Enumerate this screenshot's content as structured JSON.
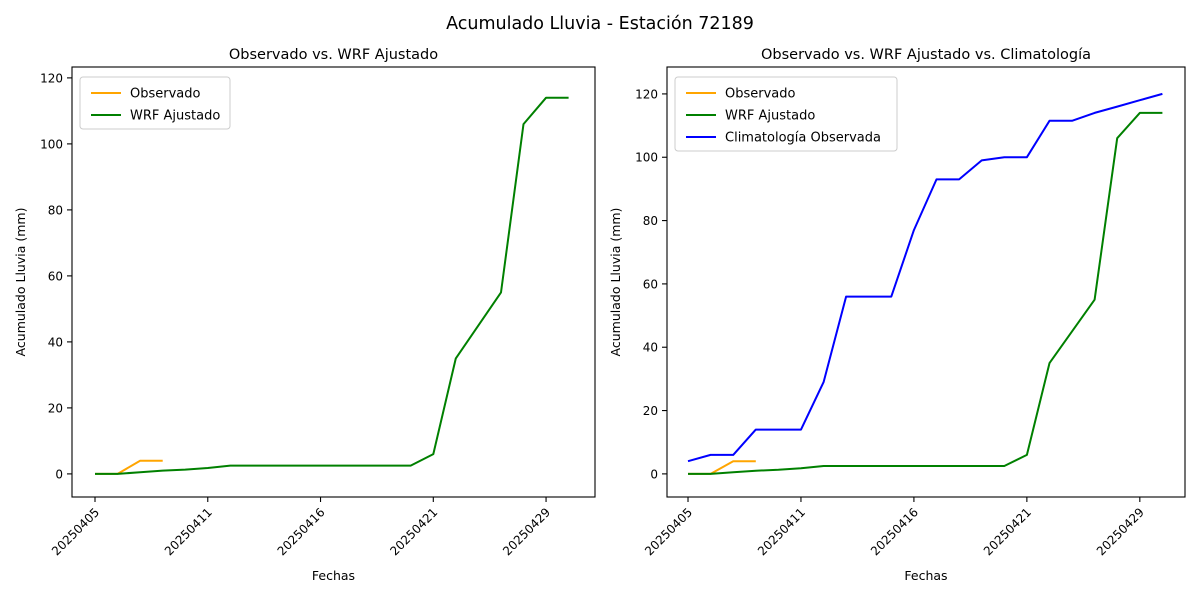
{
  "figure": {
    "suptitle": "Acumulado Lluvia - Estación 72189",
    "background": "#ffffff"
  },
  "colors": {
    "observado": "#FFA500",
    "wrf_ajustado": "#008000",
    "climatologia": "#0000FF",
    "axis": "#000000",
    "legend_border": "#cccccc",
    "legend_bg": "#ffffff"
  },
  "chart_data": [
    {
      "type": "line",
      "title": "Observado vs. WRF Ajustado",
      "xlabel": "Fechas",
      "ylabel": "Acumulado Lluvia (mm)",
      "x_tick_labels": [
        "20250405",
        "20250411",
        "20250416",
        "20250421",
        "20250429"
      ],
      "x_tick_indices": [
        0,
        5,
        10,
        15,
        20
      ],
      "y_ticks": [
        0,
        20,
        40,
        60,
        80,
        100,
        120
      ],
      "xlim": [
        -1.02,
        22.17
      ],
      "ylim": [
        -7.0,
        123.3
      ],
      "grid": false,
      "legend_position": "upper left",
      "series": [
        {
          "name": "Observado",
          "color": "#FFA500",
          "x": [
            0,
            1,
            2,
            3
          ],
          "values": [
            0,
            0,
            4,
            4
          ]
        },
        {
          "name": "WRF Ajustado",
          "color": "#008000",
          "x": [
            0,
            1,
            2,
            3,
            4,
            5,
            6,
            7,
            8,
            9,
            10,
            11,
            12,
            13,
            14,
            15,
            16,
            17,
            18,
            19,
            20,
            21
          ],
          "values": [
            0,
            0,
            0.5,
            1,
            1.3,
            1.8,
            2.5,
            2.5,
            2.5,
            2.5,
            2.5,
            2.5,
            2.5,
            2.5,
            2.5,
            6,
            35,
            45,
            55,
            106,
            114,
            114
          ]
        }
      ]
    },
    {
      "type": "line",
      "title": "Observado vs. WRF Ajustado vs. Climatología",
      "xlabel": "Fechas",
      "ylabel": "Acumulado Lluvia (mm)",
      "x_tick_labels": [
        "20250405",
        "20250411",
        "20250416",
        "20250421",
        "20250429"
      ],
      "x_tick_indices": [
        0,
        5,
        10,
        15,
        20
      ],
      "y_ticks": [
        0,
        20,
        40,
        60,
        80,
        100,
        120
      ],
      "xlim": [
        -0.93,
        22.0
      ],
      "ylim": [
        -7.3,
        128.5
      ],
      "grid": false,
      "legend_position": "upper left",
      "series": [
        {
          "name": "Observado",
          "color": "#FFA500",
          "x": [
            0,
            1,
            2,
            3
          ],
          "values": [
            0,
            0,
            4,
            4
          ]
        },
        {
          "name": "WRF Ajustado",
          "color": "#008000",
          "x": [
            0,
            1,
            2,
            3,
            4,
            5,
            6,
            7,
            8,
            9,
            10,
            11,
            12,
            13,
            14,
            15,
            16,
            17,
            18,
            19,
            20,
            21
          ],
          "values": [
            0,
            0,
            0.5,
            1,
            1.3,
            1.8,
            2.5,
            2.5,
            2.5,
            2.5,
            2.5,
            2.5,
            2.5,
            2.5,
            2.5,
            6,
            35,
            45,
            55,
            106,
            114,
            114
          ]
        },
        {
          "name": "Climatología Observada",
          "color": "#0000FF",
          "x": [
            0,
            1,
            2,
            3,
            4,
            5,
            6,
            7,
            8,
            9,
            10,
            11,
            12,
            13,
            14,
            15,
            16,
            17,
            18,
            19,
            20,
            21
          ],
          "values": [
            4,
            6,
            6,
            14,
            14,
            14,
            29,
            56,
            56,
            56,
            77,
            93,
            93,
            99,
            100,
            100,
            111.5,
            111.5,
            114,
            116,
            118,
            120
          ]
        }
      ]
    }
  ]
}
